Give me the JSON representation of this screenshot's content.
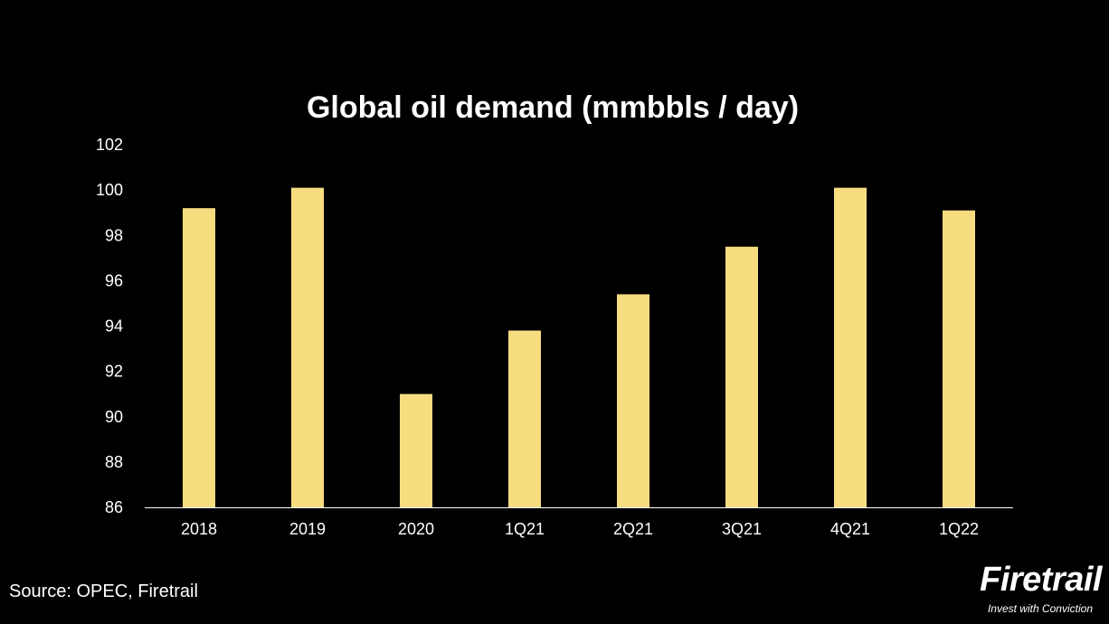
{
  "chart_data": {
    "type": "bar",
    "title": "Global oil demand (mmbbls / day)",
    "categories": [
      "2018",
      "2019",
      "2020",
      "1Q21",
      "2Q21",
      "3Q21",
      "4Q21",
      "1Q22"
    ],
    "values": [
      99.2,
      100.1,
      91.0,
      93.8,
      95.4,
      97.5,
      100.1,
      99.1
    ],
    "ylim": [
      86,
      102
    ],
    "yticks": [
      86,
      88,
      90,
      92,
      94,
      96,
      98,
      100,
      102
    ],
    "grid": false,
    "bar_color": "#f8dc80",
    "axis_color": "#ffffff"
  },
  "source": "Source: OPEC, Firetrail",
  "brand": {
    "name": "Firetrail",
    "tagline": "Invest with Conviction"
  }
}
